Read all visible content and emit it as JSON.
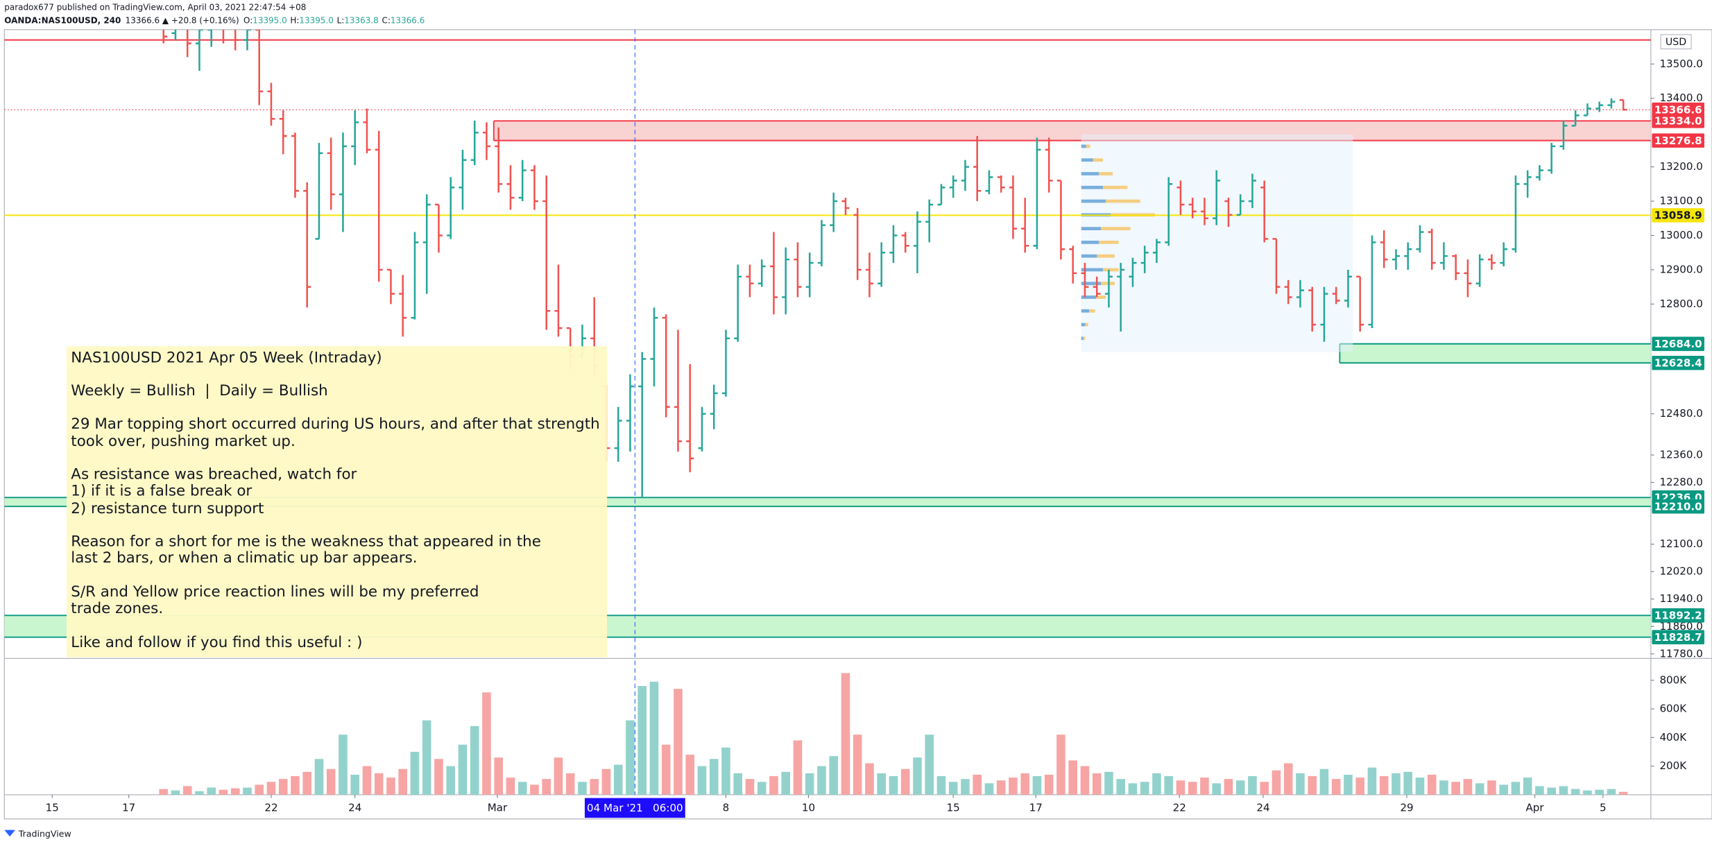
{
  "header": {
    "line1": "paradox677 published on TradingView.com, April 03, 2021 22:47:54 +08",
    "symbol": "OANDA:NAS100USD, 240",
    "quote": "13366.6 ▲ +20.8 (+0.16%)",
    "fields": [
      {
        "k": "O:",
        "v": "13395.0"
      },
      {
        "k": "H:",
        "v": "13395.0"
      },
      {
        "k": "L:",
        "v": "13363.8"
      },
      {
        "k": "C:",
        "v": "13366.6"
      }
    ]
  },
  "note": [
    "NAS100USD 2021 Apr 05 Week (Intraday)",
    "Weekly = Bullish  |  Daily = Bullish",
    "29 Mar topping short occurred during US hours, and after that strength",
    "took over, pushing market up.",
    "As resistance was breached, watch for",
    "1) if it is a false break or",
    "2) resistance turn support",
    "Reason for a short for me is the weakness that appeared in the",
    "last 2 bars, or when a climatic up bar appears.",
    "S/R and Yellow price reaction lines will be my preferred",
    "trade zones.",
    "Like and follow if you find this useful : )"
  ],
  "footer": "TradingView",
  "chart_data": {
    "type": "ohlc",
    "currency": "USD",
    "up_color": "#26a69a",
    "down_color": "#ef5350",
    "vol_up_color": "#93d2cc",
    "vol_down_color": "#f6a5a4",
    "xlim": [
      -13.3,
      124.3
    ],
    "ylim": [
      11770,
      13600
    ],
    "vlim": [
      0,
      945000
    ],
    "xticks": [
      {
        "value": -9.3,
        "label": "15"
      },
      {
        "value": -2.9,
        "label": "17"
      },
      {
        "value": 9.0,
        "label": "22"
      },
      {
        "value": 16.0,
        "label": "24"
      },
      {
        "value": 27.9,
        "label": "Mar"
      },
      {
        "value": 47.0,
        "label": "8"
      },
      {
        "value": 53.9,
        "label": "10"
      },
      {
        "value": 66.0,
        "label": "15"
      },
      {
        "value": 72.9,
        "label": "17"
      },
      {
        "value": 84.9,
        "label": "22"
      },
      {
        "value": 91.9,
        "label": "24"
      },
      {
        "value": 103.9,
        "label": "29"
      },
      {
        "value": 114.6,
        "label": "Apr"
      },
      {
        "value": 120.3,
        "label": "5"
      }
    ],
    "yticks": [
      {
        "value": 13500,
        "label": "13500.0"
      },
      {
        "value": 13400,
        "label": "13400.0"
      },
      {
        "value": 13200,
        "label": "13200.0"
      },
      {
        "value": 13100,
        "label": "13100.0"
      },
      {
        "value": 13000,
        "label": "13000.0"
      },
      {
        "value": 12900,
        "label": "12900.0"
      },
      {
        "value": 12800,
        "label": "12800.0"
      },
      {
        "value": 12480,
        "label": "12480.0"
      },
      {
        "value": 12360,
        "label": "12360.0"
      },
      {
        "value": 12280,
        "label": "12280.0"
      },
      {
        "value": 12100,
        "label": "12100.0"
      },
      {
        "value": 12020,
        "label": "12020.0"
      },
      {
        "value": 11940,
        "label": "11940.0"
      },
      {
        "value": 11860,
        "label": "11860.0"
      },
      {
        "value": 11780,
        "label": "11780.0"
      }
    ],
    "vticks": [
      {
        "value": 200000,
        "label": "200K"
      },
      {
        "value": 400000,
        "label": "400K"
      },
      {
        "value": 600000,
        "label": "600K"
      },
      {
        "value": 800000,
        "label": "800K"
      }
    ],
    "ohlc": [
      [
        13620,
        13640,
        13560,
        13580
      ],
      [
        13590,
        13650,
        13570,
        13630
      ],
      [
        13630,
        13660,
        13520,
        13560
      ],
      [
        13560,
        13640,
        13480,
        13600
      ],
      [
        13600,
        13670,
        13550,
        13640
      ],
      [
        13640,
        13680,
        13560,
        13620
      ],
      [
        13620,
        13660,
        13540,
        13570
      ],
      [
        13570,
        13650,
        13540,
        13600
      ],
      [
        13600,
        13600,
        13380,
        13420
      ],
      [
        13420,
        13445,
        13320,
        13340
      ],
      [
        13340,
        13365,
        13237,
        13290
      ],
      [
        13290,
        13300,
        13110,
        13130
      ],
      [
        13130,
        13155,
        12790,
        12850
      ],
      [
        12990,
        13270,
        12990,
        13240
      ],
      [
        13240,
        13285,
        13075,
        13120
      ],
      [
        13120,
        13300,
        13010,
        13260
      ],
      [
        13260,
        13365,
        13205,
        13330
      ],
      [
        13330,
        13370,
        13240,
        13250
      ],
      [
        13250,
        13305,
        12865,
        12900
      ],
      [
        12900,
        12900,
        12800,
        12830
      ],
      [
        12830,
        12885,
        12705,
        12760
      ],
      [
        12760,
        13010,
        12755,
        12980
      ],
      [
        12980,
        13120,
        12830,
        13090
      ],
      [
        13090,
        13090,
        12950,
        13000
      ],
      [
        13000,
        13170,
        12990,
        13140
      ],
      [
        13140,
        13250,
        13075,
        13220
      ],
      [
        13220,
        13335,
        13205,
        13300
      ],
      [
        13300,
        13330,
        13220,
        13260
      ],
      [
        13260,
        13315,
        13125,
        13150
      ],
      [
        13150,
        13205,
        13075,
        13110
      ],
      [
        13110,
        13220,
        13100,
        13190
      ],
      [
        13190,
        13205,
        13075,
        13100
      ],
      [
        13100,
        13175,
        12725,
        12780
      ],
      [
        12780,
        12915,
        12705,
        12730
      ],
      [
        12730,
        12730,
        12610,
        12650
      ],
      [
        12650,
        12740,
        12640,
        12700
      ],
      [
        12700,
        12820,
        12590,
        12620
      ],
      [
        12560,
        12565,
        12340,
        12380
      ],
      [
        12380,
        12500,
        12340,
        12460
      ],
      [
        12460,
        12595,
        12370,
        12560
      ],
      [
        12560,
        12660,
        12235,
        12640
      ],
      [
        12640,
        12790,
        12560,
        12760
      ],
      [
        12760,
        12770,
        12470,
        12500
      ],
      [
        12500,
        12725,
        12370,
        12400
      ],
      [
        12400,
        12625,
        12310,
        12350
      ],
      [
        12380,
        12500,
        12370,
        12480
      ],
      [
        12480,
        12565,
        12435,
        12540
      ],
      [
        12540,
        12725,
        12530,
        12700
      ],
      [
        12700,
        12915,
        12690,
        12880
      ],
      [
        12880,
        12915,
        12820,
        12860
      ],
      [
        12860,
        12930,
        12850,
        12910
      ],
      [
        12910,
        13010,
        12770,
        12820
      ],
      [
        12820,
        12965,
        12770,
        12930
      ],
      [
        12930,
        12980,
        12820,
        12850
      ],
      [
        12850,
        12950,
        12820,
        12920
      ],
      [
        12920,
        13045,
        12910,
        13030
      ],
      [
        13030,
        13125,
        13010,
        13100
      ],
      [
        13100,
        13110,
        13060,
        13080
      ],
      [
        13060,
        13080,
        12870,
        12900
      ],
      [
        12900,
        12950,
        12820,
        12860
      ],
      [
        12860,
        12980,
        12850,
        12950
      ],
      [
        12950,
        13030,
        12920,
        13000
      ],
      [
        13000,
        13010,
        12950,
        12970
      ],
      [
        12970,
        13070,
        12890,
        13040
      ],
      [
        13040,
        13105,
        12980,
        13090
      ],
      [
        13090,
        13150,
        13090,
        13140
      ],
      [
        13140,
        13175,
        13110,
        13160
      ],
      [
        13160,
        13220,
        13130,
        13200
      ],
      [
        13200,
        13290,
        13100,
        13130
      ],
      [
        13130,
        13190,
        13120,
        13170
      ],
      [
        13170,
        13175,
        13125,
        13140
      ],
      [
        13140,
        13175,
        12990,
        13020
      ],
      [
        13020,
        13110,
        12950,
        12970
      ],
      [
        12970,
        13285,
        12960,
        13250
      ],
      [
        13250,
        13285,
        13125,
        13160
      ],
      [
        13160,
        13160,
        12930,
        12960
      ],
      [
        12960,
        12970,
        12860,
        12890
      ],
      [
        12890,
        12920,
        12820,
        12850
      ],
      [
        12850,
        12880,
        12820,
        12830
      ],
      [
        12830,
        12900,
        12790,
        12880
      ],
      [
        12880,
        12920,
        12720,
        12900
      ],
      [
        12880,
        12935,
        12850,
        12920
      ],
      [
        12920,
        12970,
        12890,
        12950
      ],
      [
        12950,
        12990,
        12920,
        12980
      ],
      [
        12980,
        13170,
        12970,
        13150
      ],
      [
        13140,
        13160,
        13060,
        13090
      ],
      [
        13090,
        13110,
        13050,
        13070
      ],
      [
        13070,
        13110,
        13030,
        13050
      ],
      [
        13050,
        13190,
        13030,
        13160
      ],
      [
        13100,
        13110,
        13025,
        13060
      ],
      [
        13060,
        13120,
        13060,
        13100
      ],
      [
        13100,
        13180,
        13080,
        13160
      ],
      [
        13140,
        13160,
        12980,
        12990
      ],
      [
        12990,
        12990,
        12830,
        12850
      ],
      [
        12850,
        12870,
        12800,
        12820
      ],
      [
        12820,
        12870,
        12790,
        12840
      ],
      [
        12840,
        12850,
        12720,
        12740
      ],
      [
        12740,
        12850,
        12690,
        12830
      ],
      [
        12830,
        12850,
        12800,
        12810
      ],
      [
        12810,
        12900,
        12790,
        12880
      ],
      [
        12880,
        12880,
        12720,
        12740
      ],
      [
        12740,
        13000,
        12730,
        12980
      ],
      [
        12980,
        13015,
        12905,
        12930
      ],
      [
        12930,
        12960,
        12900,
        12940
      ],
      [
        12940,
        12980,
        12900,
        12960
      ],
      [
        12960,
        13030,
        12950,
        13010
      ],
      [
        13010,
        13020,
        12900,
        12920
      ],
      [
        12920,
        12980,
        12900,
        12940
      ],
      [
        12940,
        12945,
        12870,
        12890
      ],
      [
        12890,
        12930,
        12820,
        12860
      ],
      [
        12860,
        12945,
        12850,
        12930
      ],
      [
        12930,
        12945,
        12900,
        12920
      ],
      [
        12920,
        12980,
        12910,
        12960
      ],
      [
        12960,
        13175,
        12950,
        13150
      ],
      [
        13150,
        13190,
        13110,
        13170
      ],
      [
        13170,
        13205,
        13160,
        13190
      ],
      [
        13190,
        13270,
        13180,
        13260
      ],
      [
        13260,
        13335,
        13250,
        13320
      ],
      [
        13320,
        13365,
        13320,
        13350
      ],
      [
        13350,
        13385,
        13350,
        13370
      ],
      [
        13370,
        13390,
        13360,
        13380
      ],
      [
        13380,
        13400,
        13370,
        13390
      ],
      [
        13395,
        13395,
        13363.8,
        13366.6
      ]
    ],
    "volume": [
      40000,
      30000,
      60000,
      25000,
      50000,
      35000,
      45000,
      50000,
      70000,
      90000,
      110000,
      130000,
      160000,
      250000,
      180000,
      420000,
      140000,
      200000,
      150000,
      120000,
      180000,
      300000,
      520000,
      250000,
      200000,
      350000,
      480000,
      715000,
      260000,
      120000,
      90000,
      70000,
      110000,
      260000,
      150000,
      90000,
      110000,
      180000,
      210000,
      520000,
      760000,
      790000,
      350000,
      740000,
      280000,
      200000,
      250000,
      330000,
      150000,
      110000,
      90000,
      130000,
      160000,
      380000,
      150000,
      200000,
      270000,
      850000,
      420000,
      220000,
      150000,
      130000,
      180000,
      260000,
      420000,
      130000,
      90000,
      110000,
      140000,
      80000,
      100000,
      120000,
      150000,
      130000,
      140000,
      420000,
      240000,
      200000,
      150000,
      160000,
      110000,
      80000,
      90000,
      150000,
      130000,
      100000,
      90000,
      120000,
      80000,
      110000,
      100000,
      130000,
      90000,
      170000,
      220000,
      150000,
      130000,
      180000,
      110000,
      140000,
      120000,
      190000,
      130000,
      150000,
      160000,
      120000,
      140000,
      100000,
      90000,
      110000,
      80000,
      100000,
      70000,
      90000,
      120000,
      60000,
      50000,
      60000,
      40000,
      30000,
      35000,
      40000,
      20000
    ],
    "lines": [
      {
        "value": 13570,
        "color": "#f23645",
        "style": "solid",
        "price_tag": false
      },
      {
        "value": 13366.6,
        "color": "#f23645",
        "style": "dotted",
        "price_tag": true,
        "text_color": "#ffffff"
      },
      {
        "value": 13058.9,
        "color": "#f5e50a",
        "style": "solid",
        "price_tag": true,
        "text_color": "#131722"
      }
    ],
    "zones": [
      {
        "low": 13276.8,
        "high": {
          "value": 13334,
          "label": "13334.0"
        },
        "x0": 27.6,
        "fill": "#f9d2d2",
        "stroke": "#f23645"
      },
      {
        "low": 12628.4,
        "high": {
          "value": 12684,
          "label": "12684.0"
        },
        "x0": 98.3,
        "fill": "#c9f5cf",
        "stroke": "#089981"
      },
      {
        "low": {
          "value": 12210,
          "label": "12210.0"
        },
        "high": {
          "value": 12236,
          "label": "12236.0"
        },
        "fill": "#c9f5cf",
        "stroke": "#089981"
      },
      {
        "low": 11828.7,
        "high": 11892.2,
        "fill": "#c9f5cf",
        "stroke": "#089981"
      }
    ],
    "profile": {
      "x0": 76.7,
      "x1": 99.4,
      "top": 13295,
      "bottom": 12660,
      "up_color": "#5b9bd5",
      "down_color": "#f5c76a",
      "prices": [
        13260,
        13220,
        13180,
        13140,
        13100,
        13060,
        13020,
        12980,
        12940,
        12900,
        12860,
        12820,
        12780,
        12740,
        12700
      ],
      "up": [
        5,
        12,
        18,
        22,
        25,
        30,
        20,
        18,
        16,
        22,
        20,
        15,
        8,
        4,
        2
      ],
      "down": [
        4,
        10,
        14,
        25,
        35,
        45,
        30,
        20,
        18,
        16,
        14,
        10,
        6,
        3,
        2
      ]
    },
    "crosshair": {
      "x": 39.4,
      "label": "04 Mar '21   06:00"
    }
  }
}
